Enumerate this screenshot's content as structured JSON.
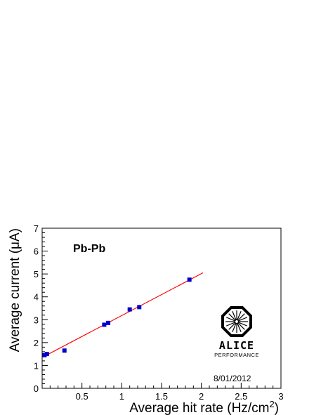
{
  "chart_data": {
    "type": "scatter",
    "xlabel": "Average hit rate (Hz/cm",
    "xlabel_superscript": "2",
    "xlabel_suffix": ")",
    "ylabel": "Average current (μA)",
    "xlim": [
      0,
      3
    ],
    "ylim": [
      0,
      7
    ],
    "x_ticks": [
      0.5,
      1,
      1.5,
      2,
      2.5,
      3
    ],
    "x_tick_labels": [
      "0.5",
      "1",
      "1.5",
      "2",
      "2.5",
      "3"
    ],
    "y_ticks": [
      0,
      1,
      2,
      3,
      4,
      5,
      6,
      7
    ],
    "y_tick_labels": [
      "0",
      "1",
      "2",
      "3",
      "4",
      "5",
      "6",
      "7"
    ],
    "grid": false,
    "series": [
      {
        "marker": "square",
        "color": "#0000cc",
        "x": [
          0.03,
          0.06,
          0.28,
          0.78,
          0.83,
          1.1,
          1.22,
          1.85
        ],
        "y": [
          1.45,
          1.5,
          1.65,
          2.78,
          2.86,
          3.45,
          3.55,
          4.75
        ]
      }
    ],
    "fit_line": {
      "color": "#ff0000",
      "x": [
        0.0,
        2.02
      ],
      "y": [
        1.35,
        5.05
      ]
    },
    "annotations": {
      "panel_label": "Pb-Pb",
      "date": "8/01/2012",
      "logo_name": "ALICE",
      "logo_sub": "PERFORMANCE"
    }
  }
}
